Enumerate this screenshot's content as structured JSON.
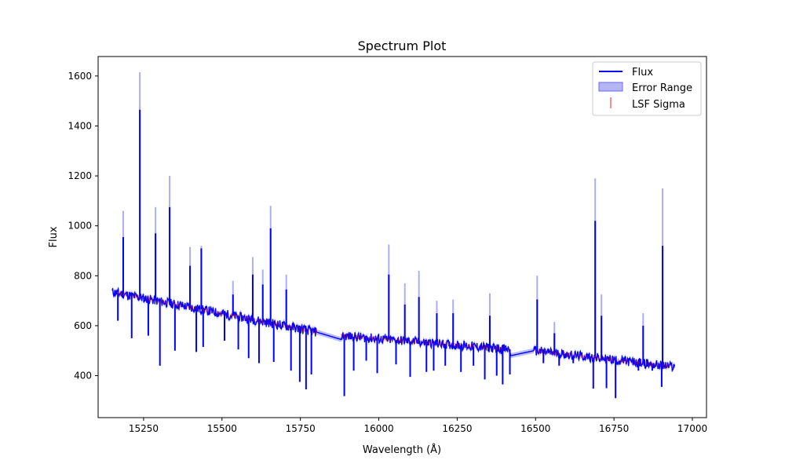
{
  "chart_data": {
    "type": "line",
    "title": "Spectrum Plot",
    "xlabel": "Wavelength (Å)",
    "ylabel": "Flux",
    "xlim": [
      15105,
      17045
    ],
    "ylim": [
      232,
      1678
    ],
    "x_ticks": [
      15250,
      15500,
      15750,
      16000,
      16250,
      16500,
      16750,
      17000
    ],
    "y_ticks": [
      400,
      600,
      800,
      1000,
      1200,
      1400,
      1600
    ],
    "grid": false,
    "legend_position": "top-right",
    "colors": {
      "flux": "#0000ff",
      "error": "#6a6af0",
      "lsf": "#ff0000"
    },
    "legend": [
      {
        "label": "Flux",
        "kind": "line"
      },
      {
        "label": "Error Range",
        "kind": "band"
      },
      {
        "label": "LSF Sigma",
        "kind": "tick"
      }
    ],
    "segments": [
      {
        "x_start": 15150,
        "x_end": 15800,
        "y_start": 735,
        "y_end": 575
      },
      {
        "x_start": 15800,
        "x_end": 15880,
        "y_start": 575,
        "y_end": 545
      },
      {
        "x_start": 15880,
        "x_end": 16420,
        "y_start": 560,
        "y_end": 505
      },
      {
        "x_start": 16420,
        "x_end": 16495,
        "y_start": 480,
        "y_end": 500
      },
      {
        "x_start": 16495,
        "x_end": 16945,
        "y_start": 500,
        "y_end": 435
      }
    ],
    "emission_peaks": [
      {
        "x": 15185,
        "flux": 955,
        "error_top": 1060
      },
      {
        "x": 15238,
        "flux": 1465,
        "error_top": 1615
      },
      {
        "x": 15288,
        "flux": 970,
        "error_top": 1075
      },
      {
        "x": 15333,
        "flux": 1075,
        "error_top": 1200
      },
      {
        "x": 15398,
        "flux": 840,
        "error_top": 915
      },
      {
        "x": 15434,
        "flux": 910,
        "error_top": 920
      },
      {
        "x": 15535,
        "flux": 725,
        "error_top": 780
      },
      {
        "x": 15598,
        "flux": 805,
        "error_top": 875
      },
      {
        "x": 15630,
        "flux": 765,
        "error_top": 825
      },
      {
        "x": 15655,
        "flux": 990,
        "error_top": 1080
      },
      {
        "x": 15705,
        "flux": 745,
        "error_top": 805
      },
      {
        "x": 16032,
        "flux": 805,
        "error_top": 925
      },
      {
        "x": 16083,
        "flux": 685,
        "error_top": 770
      },
      {
        "x": 16128,
        "flux": 715,
        "error_top": 820
      },
      {
        "x": 16185,
        "flux": 650,
        "error_top": 700
      },
      {
        "x": 16237,
        "flux": 650,
        "error_top": 705
      },
      {
        "x": 16354,
        "flux": 640,
        "error_top": 730
      },
      {
        "x": 16505,
        "flux": 705,
        "error_top": 800
      },
      {
        "x": 16560,
        "flux": 570,
        "error_top": 615
      },
      {
        "x": 16690,
        "flux": 1020,
        "error_top": 1190
      },
      {
        "x": 16710,
        "flux": 640,
        "error_top": 725
      },
      {
        "x": 16843,
        "flux": 600,
        "error_top": 650
      },
      {
        "x": 16905,
        "flux": 920,
        "error_top": 1150
      }
    ],
    "absorption_dips": [
      {
        "x": 15168,
        "flux": 620
      },
      {
        "x": 15212,
        "flux": 550
      },
      {
        "x": 15265,
        "flux": 560
      },
      {
        "x": 15302,
        "flux": 440
      },
      {
        "x": 15350,
        "flux": 500
      },
      {
        "x": 15418,
        "flux": 495
      },
      {
        "x": 15440,
        "flux": 515
      },
      {
        "x": 15508,
        "flux": 540
      },
      {
        "x": 15552,
        "flux": 505
      },
      {
        "x": 15585,
        "flux": 470
      },
      {
        "x": 15618,
        "flux": 450
      },
      {
        "x": 15665,
        "flux": 455
      },
      {
        "x": 15720,
        "flux": 420
      },
      {
        "x": 15748,
        "flux": 375
      },
      {
        "x": 15768,
        "flux": 345
      },
      {
        "x": 15785,
        "flux": 405
      },
      {
        "x": 15890,
        "flux": 318
      },
      {
        "x": 15920,
        "flux": 420
      },
      {
        "x": 15960,
        "flux": 460
      },
      {
        "x": 15995,
        "flux": 410
      },
      {
        "x": 16055,
        "flux": 445
      },
      {
        "x": 16100,
        "flux": 395
      },
      {
        "x": 16152,
        "flux": 415
      },
      {
        "x": 16175,
        "flux": 420
      },
      {
        "x": 16212,
        "flux": 440
      },
      {
        "x": 16262,
        "flux": 415
      },
      {
        "x": 16302,
        "flux": 440
      },
      {
        "x": 16338,
        "flux": 385
      },
      {
        "x": 16376,
        "flux": 400
      },
      {
        "x": 16395,
        "flux": 365
      },
      {
        "x": 16418,
        "flux": 405
      },
      {
        "x": 16525,
        "flux": 450
      },
      {
        "x": 16575,
        "flux": 440
      },
      {
        "x": 16620,
        "flux": 450
      },
      {
        "x": 16684,
        "flux": 348
      },
      {
        "x": 16726,
        "flux": 350
      },
      {
        "x": 16755,
        "flux": 310
      },
      {
        "x": 16812,
        "flux": 445
      },
      {
        "x": 16828,
        "flux": 420
      },
      {
        "x": 16872,
        "flux": 420
      },
      {
        "x": 16902,
        "flux": 355
      }
    ]
  }
}
